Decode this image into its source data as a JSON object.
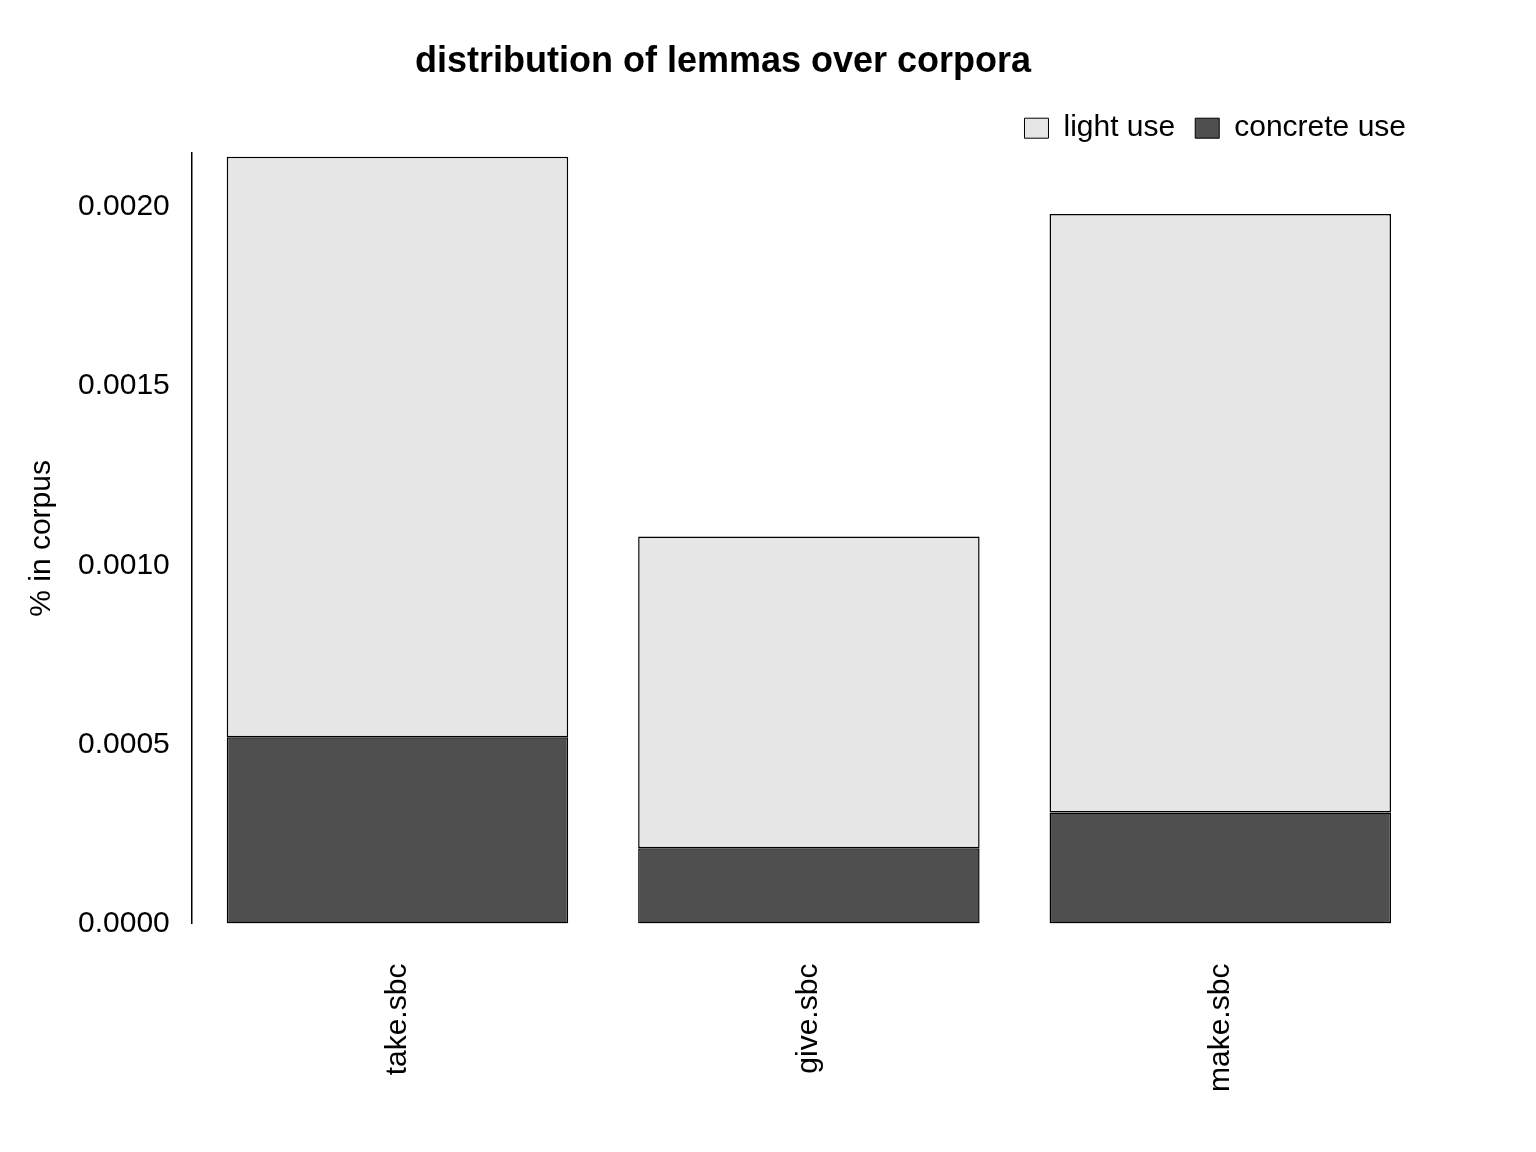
{
  "chart_data": {
    "type": "bar",
    "title": "distribution of lemmas over corpora",
    "categories": [
      "take.sbc",
      "give.sbc",
      "make.sbc"
    ],
    "series": [
      {
        "name": "concrete use",
        "color": "#4f4f4f",
        "values": [
          0.00052,
          0.00021,
          0.00031
        ]
      },
      {
        "name": "light use",
        "color": "#e6e6e6",
        "values": [
          0.00162,
          0.00087,
          0.00167
        ]
      }
    ],
    "stacked": true,
    "y_label": "% in corpus",
    "ylim": [
      0,
      0.00215
    ],
    "yticks": [
      {
        "value": 0,
        "label": "0.0000"
      },
      {
        "value": 0.0005,
        "label": "0.0005"
      },
      {
        "value": 0.001,
        "label": "0.0010"
      },
      {
        "value": 0.0015,
        "label": "0.0015"
      },
      {
        "value": 0.002,
        "label": "0.0020"
      }
    ],
    "grid": false,
    "legend": "top-right"
  }
}
